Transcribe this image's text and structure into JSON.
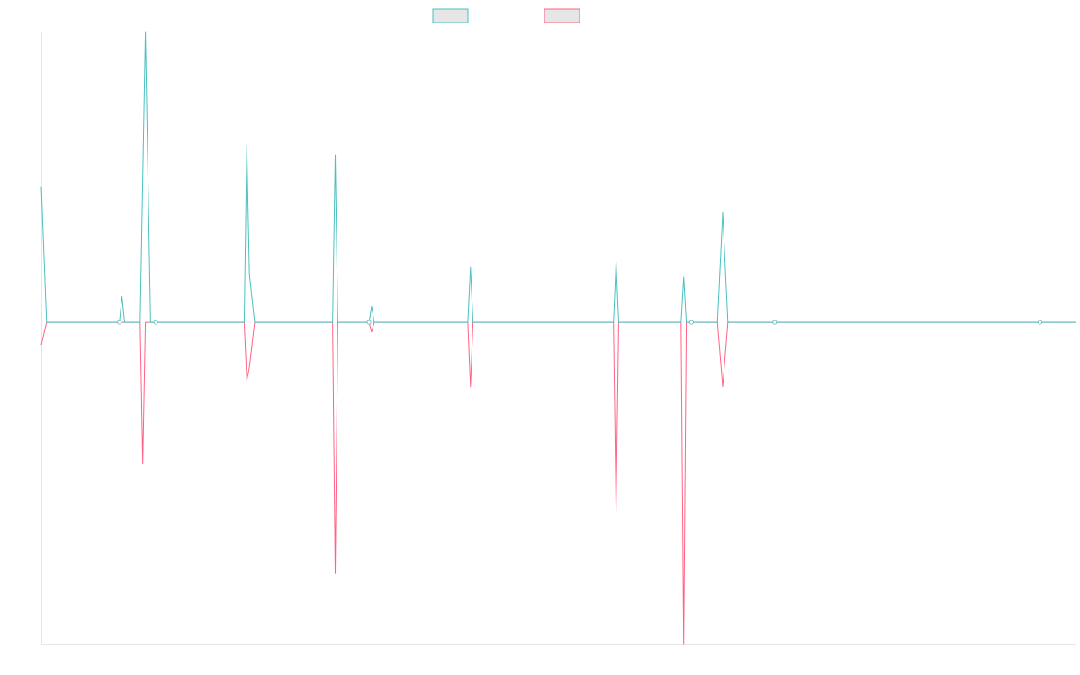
{
  "chart_data": {
    "type": "line",
    "title": "",
    "xlabel": "",
    "ylabel": "",
    "grid": false,
    "legend_position": "top-center",
    "x_count": 200,
    "ylim": [
      -1,
      0.9
    ],
    "series": [
      {
        "name": "",
        "color": "#4bc0c0",
        "fill": "#e6e6e6",
        "points": [
          [
            0,
            0.42
          ],
          [
            1,
            0
          ],
          [
            15,
            0
          ],
          [
            15.5,
            0.08
          ],
          [
            16,
            0
          ],
          [
            19,
            0
          ],
          [
            20,
            0.9
          ],
          [
            21,
            0
          ],
          [
            39,
            0
          ],
          [
            39.5,
            0.55
          ],
          [
            40,
            0.15
          ],
          [
            41,
            0
          ],
          [
            56,
            0
          ],
          [
            56.5,
            0.52
          ],
          [
            57,
            0
          ],
          [
            63,
            0
          ],
          [
            63.5,
            0.05
          ],
          [
            64,
            0
          ],
          [
            82,
            0
          ],
          [
            82.5,
            0.17
          ],
          [
            83,
            0
          ],
          [
            110,
            0
          ],
          [
            110.5,
            0.19
          ],
          [
            111,
            0
          ],
          [
            123,
            0
          ],
          [
            123.5,
            0.14
          ],
          [
            124,
            0
          ],
          [
            130,
            0
          ],
          [
            131,
            0.34
          ],
          [
            132,
            0
          ],
          [
            199,
            0
          ]
        ],
        "markers_x": [
          15,
          22,
          63,
          125,
          141,
          192
        ]
      },
      {
        "name": "",
        "color": "#ff6384",
        "fill": "#e6e6e6",
        "points": [
          [
            0,
            -0.07
          ],
          [
            1,
            0
          ],
          [
            19,
            0
          ],
          [
            19.5,
            -0.44
          ],
          [
            20,
            0
          ],
          [
            21,
            0
          ],
          [
            39,
            0
          ],
          [
            39.5,
            -0.18
          ],
          [
            40,
            -0.14
          ],
          [
            41,
            0
          ],
          [
            56,
            0
          ],
          [
            56.5,
            -0.78
          ],
          [
            57,
            0
          ],
          [
            63,
            0
          ],
          [
            63.5,
            -0.03
          ],
          [
            64,
            0
          ],
          [
            82,
            0
          ],
          [
            82.5,
            -0.2
          ],
          [
            83,
            0
          ],
          [
            110,
            0
          ],
          [
            110.5,
            -0.59
          ],
          [
            111,
            0
          ],
          [
            123,
            0
          ],
          [
            123.5,
            -1.0
          ],
          [
            124,
            0
          ],
          [
            130,
            0
          ],
          [
            131,
            -0.2
          ],
          [
            132,
            0
          ],
          [
            199,
            0
          ]
        ],
        "markers_x": [
          15,
          63,
          125,
          141,
          192
        ]
      }
    ]
  }
}
